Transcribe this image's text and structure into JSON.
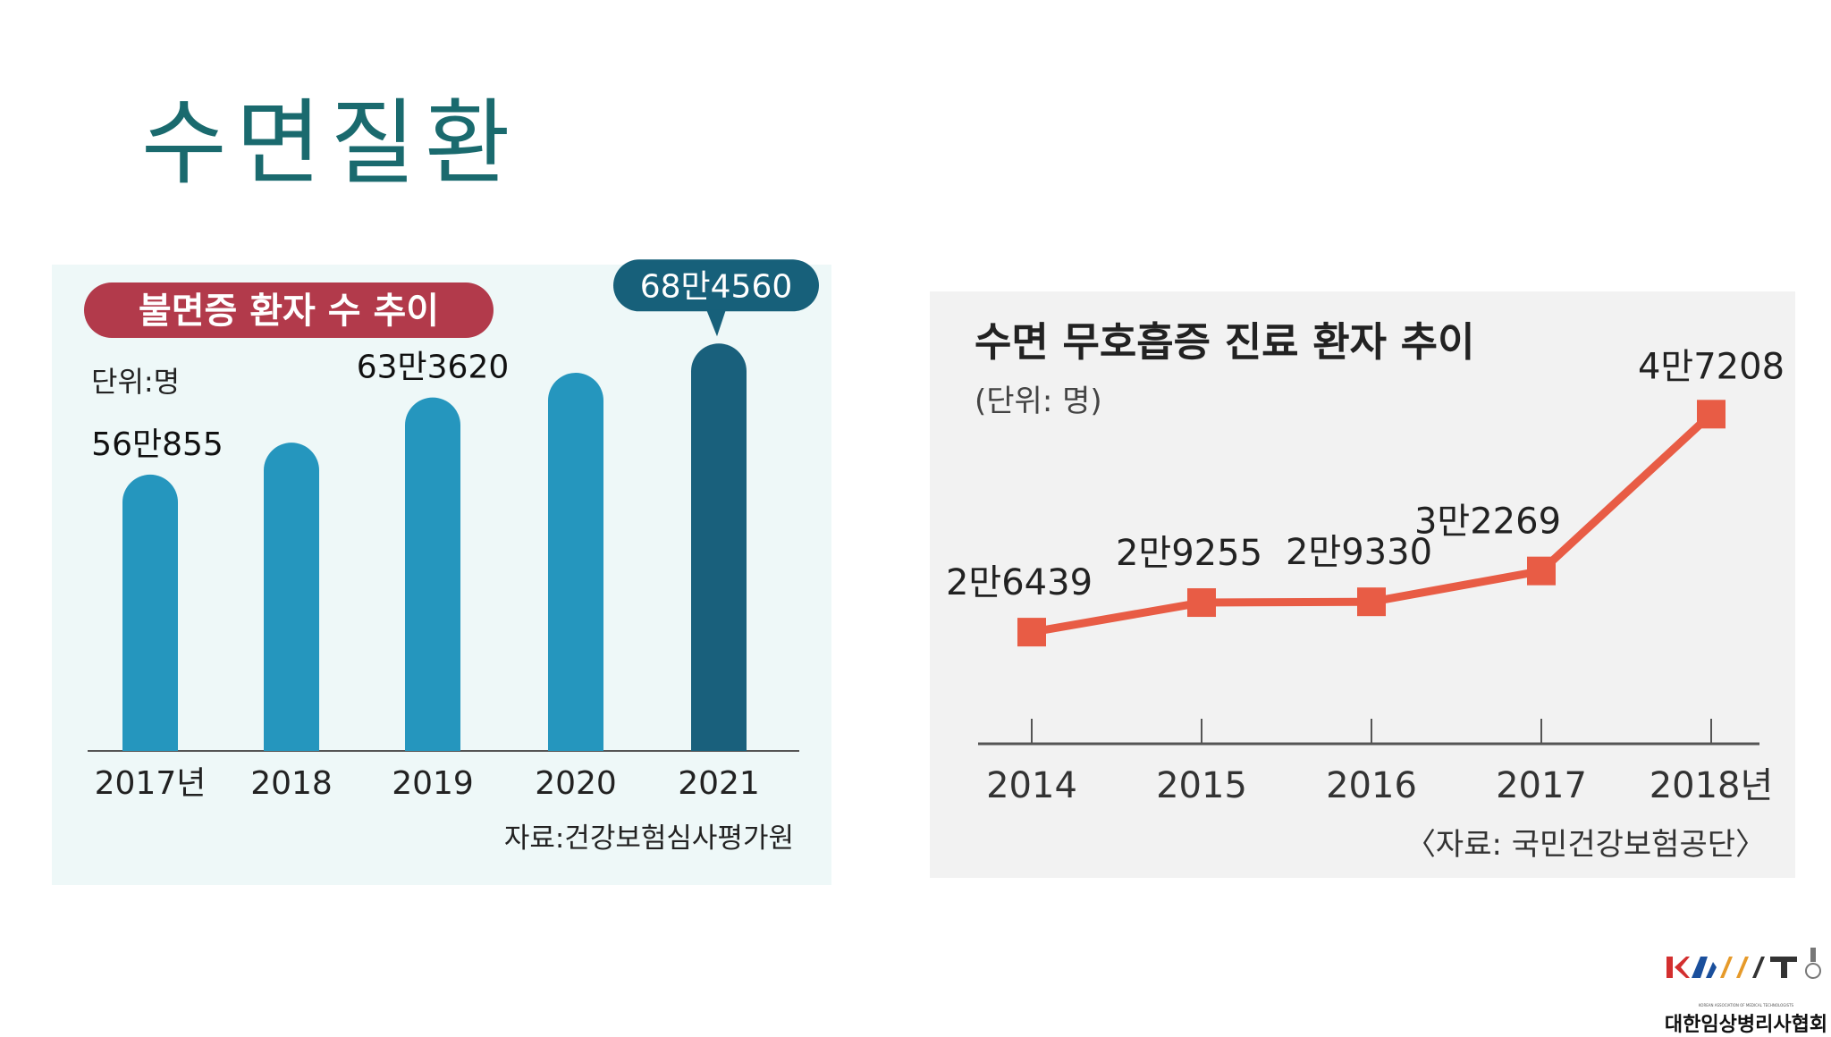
{
  "slide": {
    "title": "수면질환"
  },
  "colors": {
    "title": "#1a6a6e",
    "bar": "#2596be",
    "bar_highlight": "#19607c",
    "badge_title": "#b23a4b",
    "badge_callout": "#17607a",
    "line": "#e85c45",
    "axis": "#555555",
    "panel_left_bg": "#eef8f8",
    "panel_right_bg": "#f2f2f2"
  },
  "chart_data": [
    {
      "type": "bar",
      "title": "불면증 환자 수 추이",
      "unit_label": "단위:명",
      "source": "자료:건강보험심사평가원",
      "categories": [
        "2017년",
        "2018",
        "2019",
        "2020",
        "2021"
      ],
      "values": [
        560855,
        591000,
        633620,
        657000,
        684560
      ],
      "data_labels": [
        "56만855",
        "",
        "63만3620",
        "",
        "68만4560"
      ],
      "highlight_index": 4,
      "ylim": [
        0,
        700000
      ]
    },
    {
      "type": "line",
      "title": "수면 무호흡증 진료 환자 추이",
      "unit_label": "(단위: 명)",
      "source": "〈자료: 국민건강보험공단〉",
      "categories": [
        "2014",
        "2015",
        "2016",
        "2017",
        "2018년"
      ],
      "values": [
        26439,
        29255,
        29330,
        32269,
        47208
      ],
      "data_labels": [
        "2만6439",
        "2만9255",
        "2만9330",
        "3만2269",
        "4만7208"
      ],
      "ylim": [
        0,
        50000
      ]
    }
  ],
  "logo": {
    "mark_text": "KAMT",
    "tagline": "KOREAN ASSOCIATION OF MEDICAL TECHNOLOGISTS",
    "name": "대한임상병리사협회"
  }
}
